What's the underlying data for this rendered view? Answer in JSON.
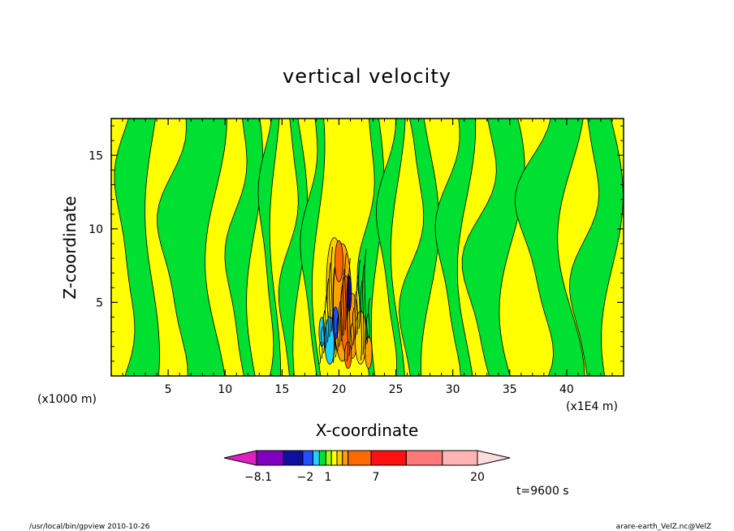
{
  "chart_data": {
    "type": "heatmap",
    "title": "vertical velocity",
    "xlabel": "X-coordinate",
    "ylabel": "Z-coordinate",
    "x_unit_label": "(x1E4 m)",
    "y_unit_label": "(x1000 m)",
    "xlim": [
      0,
      45
    ],
    "ylim": [
      0,
      17.5
    ],
    "x_ticks": [
      5,
      10,
      15,
      20,
      25,
      30,
      35,
      40
    ],
    "y_ticks": [
      5,
      10,
      15
    ],
    "x_tick_labels": [
      "5",
      "10",
      "15",
      "20",
      "25",
      "30",
      "35",
      "40"
    ],
    "y_tick_labels": [
      "5",
      "10",
      "15"
    ],
    "time_label": "t=9600 s",
    "colorbar": {
      "colors": [
        "#e020c0",
        "#8000c0",
        "#1010a0",
        "#2050ff",
        "#20d0ff",
        "#00e030",
        "#a0ff00",
        "#ffff00",
        "#ffd000",
        "#ffa000",
        "#ff6a00",
        "#ff1010",
        "#ff7878",
        "#ffb4b4",
        "#ffdcdc"
      ],
      "labeled_ticks": [
        {
          "value": -8.1,
          "label": "−8.1"
        },
        {
          "value": -2,
          "label": "−2"
        },
        {
          "value": 1,
          "label": "1"
        },
        {
          "value": 7,
          "label": "7"
        },
        {
          "value": 20,
          "label": "20"
        }
      ],
      "extend": "both"
    },
    "field_notes": "Alternating updraft (yellow, 0 to 1) and downdraft (green, -1 to 0) columns across the domain; strong convective core with orange/red updrafts and cyan/blue downdrafts between x=18 and x=22 below z=9.",
    "features": [
      {
        "region": "core-updraft",
        "x": [
          19.2,
          21.0
        ],
        "z": [
          1,
          10
        ],
        "level": "orange"
      },
      {
        "region": "core-downdraft",
        "x": [
          18.8,
          19.6
        ],
        "z": [
          1,
          4
        ],
        "level": "cyan"
      }
    ]
  },
  "footer": {
    "left": "/usr/local/bin/gpview   2010-10-26",
    "right": "arare-earth_VelZ.nc@VelZ"
  }
}
